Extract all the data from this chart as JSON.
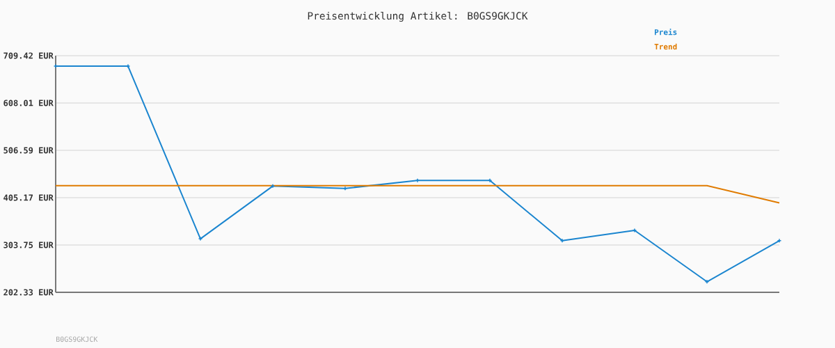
{
  "chart_data": {
    "type": "line",
    "title": "Preisentwicklung Artikel: B0GS9GKJCK",
    "annotations": [
      "B0GS9GKJCK"
    ],
    "categories": [
      null,
      null,
      null,
      null,
      null,
      null,
      null,
      null,
      null,
      null,
      null
    ],
    "series": [
      {
        "name": "Preis",
        "color": "#1a85cf",
        "marker": "cross",
        "values": [
          687,
          687,
          317,
          430,
          425,
          442,
          442,
          313,
          335,
          225,
          313
        ]
      },
      {
        "name": "Trend",
        "color": "#e07b00",
        "values": [
          431,
          431,
          431,
          431,
          431,
          431,
          431,
          431,
          431,
          431,
          394
        ]
      }
    ],
    "ylim": [
      202.33,
      709.42
    ],
    "yticks": [
      {
        "value": 202.33,
        "label": "202.33 EUR"
      },
      {
        "value": 303.75,
        "label": "303.75 EUR"
      },
      {
        "value": 405.17,
        "label": "405.17 EUR"
      },
      {
        "value": 506.59,
        "label": "506.59 EUR"
      },
      {
        "value": 608.01,
        "label": "608.01 EUR"
      },
      {
        "value": 709.42,
        "label": "709.42 EUR"
      }
    ],
    "grid": "y",
    "legend": "top right",
    "line_style": "solid"
  }
}
